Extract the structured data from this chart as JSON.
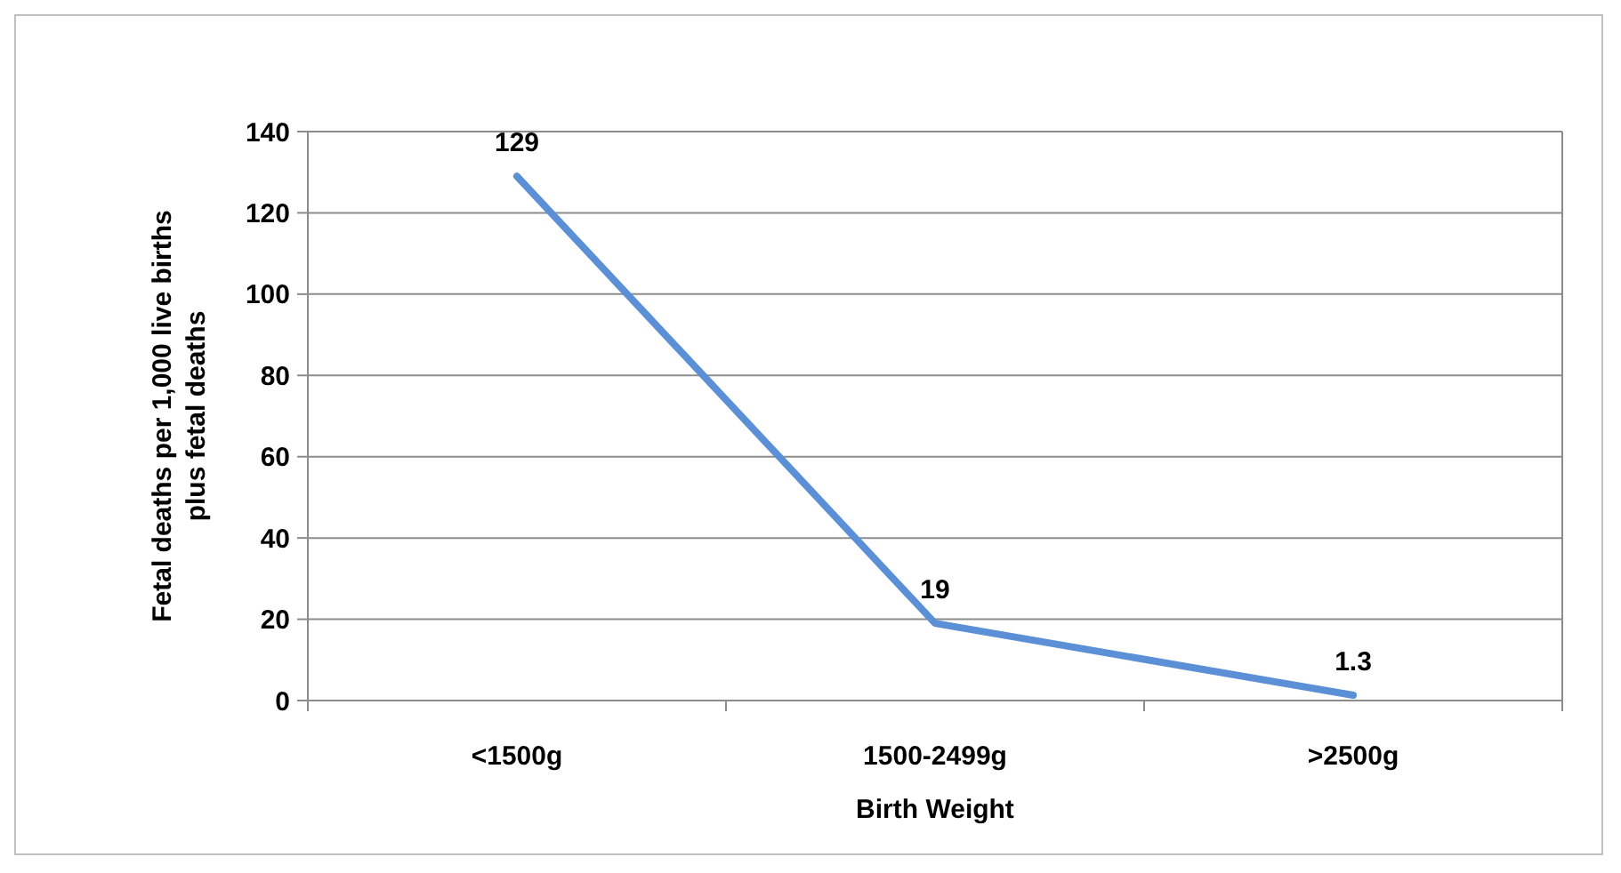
{
  "chart_data": {
    "type": "line",
    "xlabel": "Birth Weight",
    "ylabel": "Fetal deaths per 1,000 live births\nplus fetal deaths",
    "categories": [
      "<1500g",
      "1500-2499g",
      ">2500g"
    ],
    "series": [
      {
        "color": "#5b8fd6",
        "values": [
          129,
          19,
          1.3
        ]
      }
    ],
    "ylim": [
      0,
      140
    ],
    "yticks": [
      0,
      20,
      40,
      60,
      80,
      100,
      120,
      140
    ],
    "grid": "y",
    "data_labels": true,
    "marker": "none"
  }
}
